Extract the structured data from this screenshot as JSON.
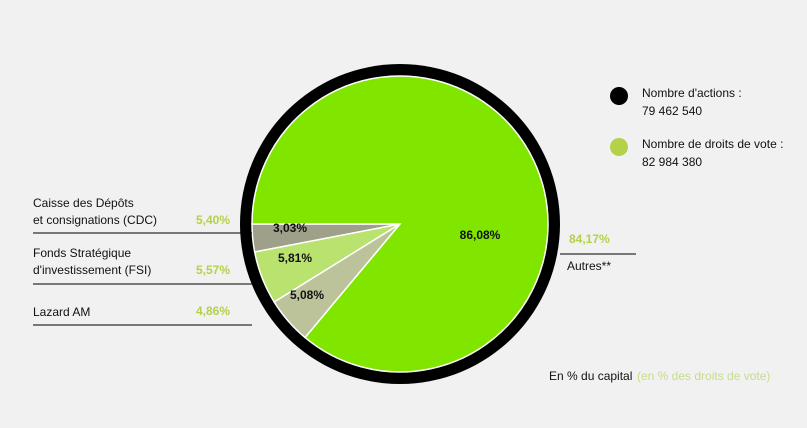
{
  "chart_data": {
    "type": "pie",
    "categories": [
      [
        "Caisse des Dépôts",
        "et consignations (CDC)"
      ],
      [
        "Fonds Stratégique",
        "d'investissement (FSI)"
      ],
      [
        "Lazard AM"
      ],
      [
        "Autres**"
      ]
    ],
    "series": [
      {
        "name": "En % du capital",
        "colors": [
          "#9ea08a",
          "#b9e26e",
          "#bcc29a",
          "#80e600"
        ],
        "values": [
          3.03,
          5.81,
          5.08,
          86.08
        ],
        "value_labels": [
          "3,03%",
          "5,81%",
          "5,08%",
          "86,08%"
        ]
      },
      {
        "name": "(en % des droits de vote)",
        "color": "#b3d24a",
        "values": [
          5.4,
          5.57,
          4.86,
          84.17
        ],
        "value_labels": [
          "5,40%",
          "5,57%",
          "4,86%",
          "84,17%"
        ]
      }
    ],
    "legend": [
      {
        "label": "Nombre d'actions :",
        "value": "79 462 540",
        "color": "#000000"
      },
      {
        "label": "Nombre de droits de vote :",
        "value": "82 984 380",
        "color": "#b3d24a"
      }
    ]
  }
}
